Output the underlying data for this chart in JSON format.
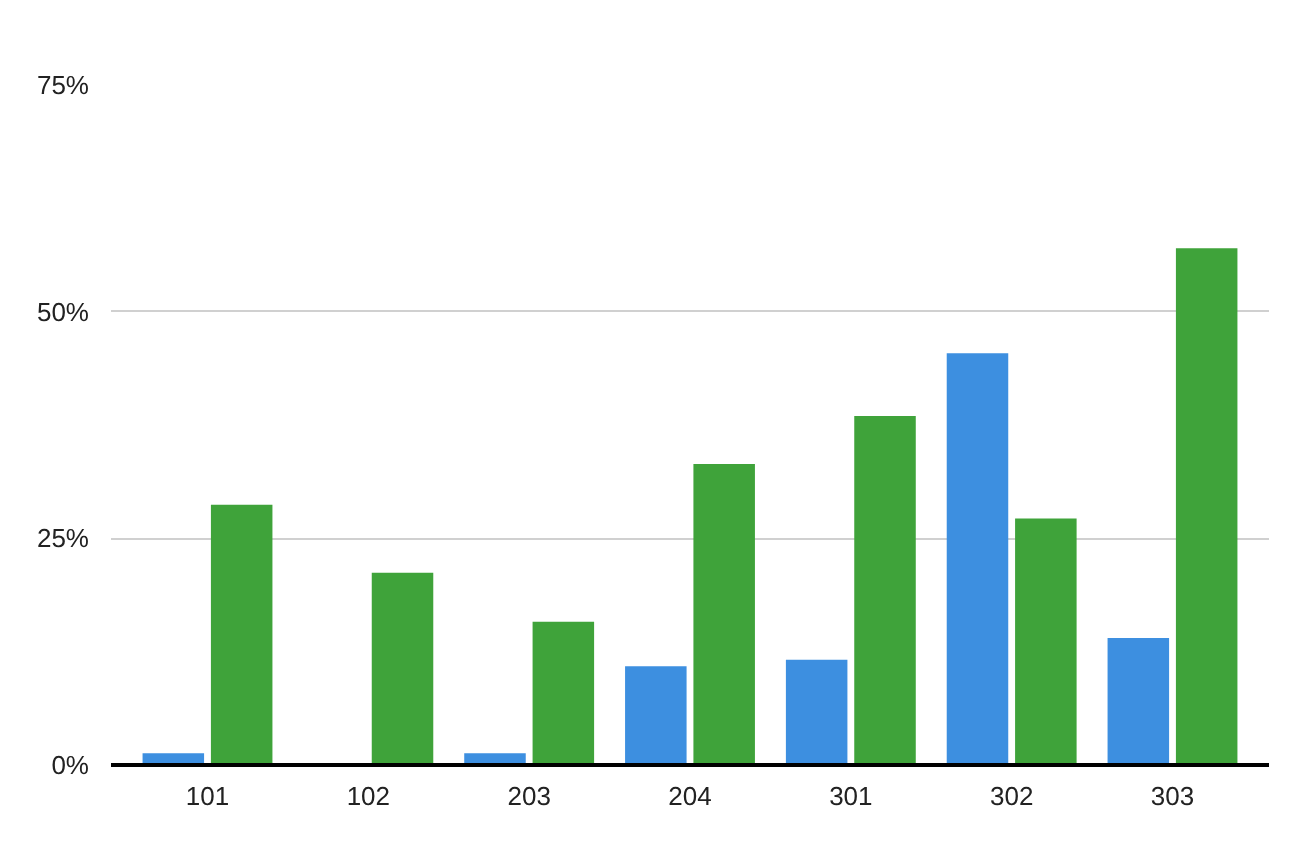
{
  "chart_data": {
    "type": "bar",
    "categories": [
      "101",
      "102",
      "203",
      "204",
      "301",
      "302",
      "303"
    ],
    "series": [
      {
        "color": "#3d8fe0",
        "values": [
          1.3,
          0,
          1.3,
          10.9,
          11.6,
          45.4,
          14.0
        ]
      },
      {
        "color": "#3fa33a",
        "values": [
          28.7,
          21.2,
          15.8,
          33.2,
          38.5,
          27.2,
          57.0
        ]
      }
    ],
    "ylim": [
      0,
      75
    ],
    "yticks": [
      {
        "value": 0,
        "label": "0%"
      },
      {
        "value": 25,
        "label": "25%"
      },
      {
        "value": 50,
        "label": "50%"
      },
      {
        "value": 75,
        "label": "75%"
      }
    ],
    "grid": "y"
  }
}
